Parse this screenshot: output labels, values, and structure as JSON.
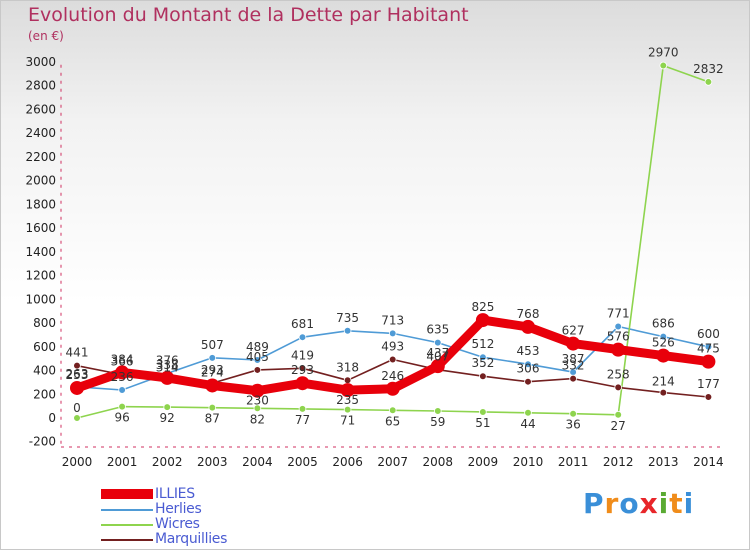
{
  "title": "Evolution du Montant de la Dette par Habitant",
  "unit": "(en €)",
  "logo": {
    "text": "Proxiti",
    "letters": [
      "P",
      "r",
      "o",
      "x",
      "i",
      "t",
      "i"
    ],
    "colors": [
      "#3a8fd8",
      "#f08c1a",
      "#3a8fd8",
      "#e8262a",
      "#5aaa32",
      "#f08c1a",
      "#3a8fd8"
    ]
  },
  "chart_data": {
    "type": "line",
    "title": "Evolution du Montant de la Dette par Habitant",
    "ylabel": "(en €)",
    "x": [
      "2000",
      "2001",
      "2002",
      "2003",
      "2004",
      "2005",
      "2006",
      "2007",
      "2008",
      "2009",
      "2010",
      "2011",
      "2012",
      "2013",
      "2014"
    ],
    "ylim": [
      -200,
      3000
    ],
    "yticks": [
      "-200",
      "0",
      "200",
      "400",
      "600",
      "800",
      "1000",
      "1200",
      "1400",
      "1600",
      "1800",
      "2000",
      "2200",
      "2400",
      "2600",
      "2800",
      "3000"
    ],
    "grid": false,
    "legend_position": "bottom-left",
    "series": [
      {
        "name": "ILLIES",
        "color": "#e8000b",
        "emphasis": "thick",
        "values": [
          253,
          384,
          338,
          274,
          230,
          293,
          235,
          246,
          437,
          825,
          768,
          627,
          576,
          526,
          475
        ]
      },
      {
        "name": "Herlies",
        "color": "#4f9bd6",
        "values": [
          263,
          236,
          376,
          507,
          489,
          681,
          735,
          713,
          635,
          512,
          453,
          387,
          771,
          686,
          600
        ]
      },
      {
        "name": "Wicres",
        "color": "#8ed44e",
        "values": [
          0,
          96,
          92,
          87,
          82,
          77,
          71,
          65,
          59,
          51,
          44,
          36,
          27,
          2970,
          2832
        ]
      },
      {
        "name": "Marquillies",
        "color": "#732020",
        "values": [
          441,
          366,
          314,
          293,
          405,
          419,
          318,
          493,
          407,
          352,
          306,
          332,
          258,
          214,
          177
        ]
      }
    ]
  }
}
